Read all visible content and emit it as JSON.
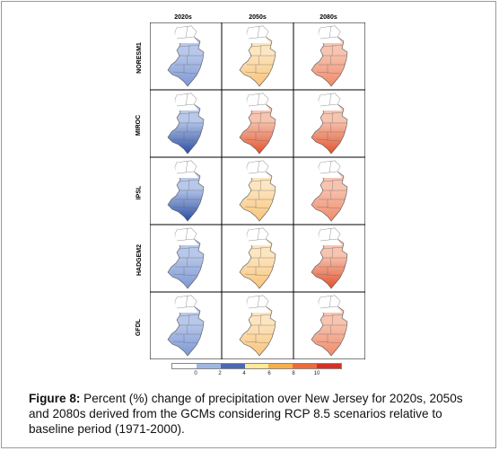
{
  "columns": [
    "2020s",
    "2050s",
    "2080s"
  ],
  "rows": [
    "NORESM1",
    "MIROC",
    "IPSL",
    "HADGEM2",
    "GFDL"
  ],
  "colors": {
    "c0": "#ffffff",
    "c1": "#9fb6e0",
    "c2": "#4a69b5",
    "c3": "#ffe99a",
    "c4": "#f7b04a",
    "c5": "#ee6a3c",
    "c6": "#d73027",
    "blue_light": "#b8c8ea",
    "blue_mid": "#7e98d4",
    "blue_dark": "#2b4ea3",
    "orange_light": "#fde5bf",
    "orange_mid": "#f9c47a",
    "red_light": "#f7c4b0",
    "red_mid": "#f08a6a",
    "red_dark": "#e2532e"
  },
  "panels": [
    [
      "blue_mid",
      "orange_mid",
      "red_mid"
    ],
    [
      "blue_dark",
      "red_dark",
      "red_dark"
    ],
    [
      "blue_dark",
      "orange_mid",
      "red_mid"
    ],
    [
      "blue_mid",
      "orange_mid",
      "red_dark"
    ],
    [
      "blue_mid",
      "orange_mid",
      "red_mid"
    ]
  ],
  "legend": {
    "ticks": [
      "0",
      "2",
      "4",
      "6",
      "8",
      "10"
    ]
  },
  "caption": {
    "label": "Figure 8:",
    "text": " Percent (%) change of precipitation over New Jersey for 2020s, 2050s and 2080s derived from the GCMs considering RCP 8.5 scenarios relative to baseline period (1971-2000)."
  }
}
